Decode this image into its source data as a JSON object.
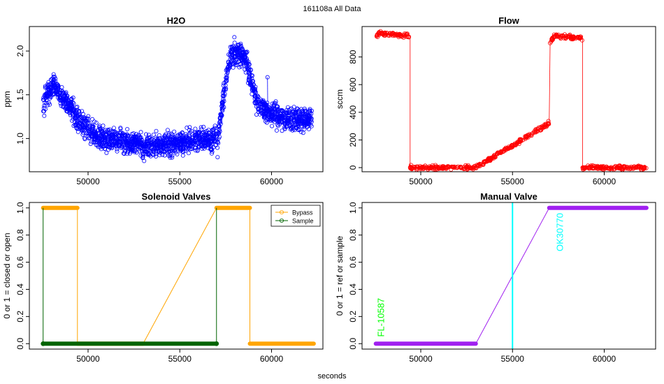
{
  "figure": {
    "title": "161108a   All Data",
    "xlabel": "seconds"
  },
  "chart_data": [
    {
      "id": "h2o",
      "type": "scatter",
      "title": "H2O",
      "ylabel": "ppm",
      "xlabel": "",
      "xlim": [
        46800,
        62800
      ],
      "ylim": [
        0.62,
        2.28
      ],
      "xticks": [
        50000,
        55000,
        60000
      ],
      "yticks": [
        1.0,
        1.5,
        2.0
      ],
      "ytick_labels": [
        "1.0",
        "1.5",
        "2.0"
      ],
      "connect": true,
      "color": "#0000ff",
      "segments": [
        {
          "x": [
            47550,
            47800,
            48000,
            48200,
            48400,
            48700,
            49000,
            49300,
            49600,
            49900,
            50200,
            50500,
            50800,
            51100,
            51400,
            51700,
            52000,
            52300,
            52600,
            52950
          ],
          "y": [
            1.35,
            1.5,
            1.58,
            1.63,
            1.52,
            1.45,
            1.37,
            1.27,
            1.18,
            1.12,
            1.08,
            1.03,
            1.0,
            0.98,
            0.98,
            0.97,
            0.96,
            0.95,
            0.95,
            0.92
          ]
        },
        {
          "x": [
            52950,
            57000
          ],
          "y": [
            0.9,
            1.0
          ]
        },
        {
          "x": [
            57050,
            57200,
            57400,
            57600,
            57800,
            58000,
            58200,
            58400,
            58600,
            58800,
            59000,
            59200,
            59500,
            59800,
            60100,
            60400,
            60700,
            61000,
            61300,
            61600,
            61900,
            62200
          ],
          "y": [
            0.92,
            1.2,
            1.5,
            1.8,
            1.95,
            2.0,
            1.98,
            1.95,
            1.88,
            1.75,
            1.58,
            1.42,
            1.33,
            1.3,
            1.28,
            1.25,
            1.23,
            1.22,
            1.22,
            1.22,
            1.22,
            1.23
          ]
        }
      ],
      "spread": 0.09
    },
    {
      "id": "flow",
      "type": "scatter",
      "title": "Flow",
      "ylabel": "sccm",
      "xlabel": "",
      "xlim": [
        46800,
        62800
      ],
      "ylim": [
        -30,
        1020
      ],
      "xticks": [
        50000,
        55000,
        60000
      ],
      "yticks": [
        0,
        200,
        400,
        600,
        800
      ],
      "ytick_labels": [
        "0",
        "200",
        "400",
        "600",
        "800"
      ],
      "connect": true,
      "color": "#ff0000",
      "segments": [
        {
          "x": [
            47550,
            47700,
            48000,
            48500,
            49000,
            49400
          ],
          "y": [
            935,
            975,
            968,
            962,
            957,
            955
          ]
        },
        {
          "x": [
            49420,
            49420
          ],
          "y": [
            955,
            0
          ]
        },
        {
          "x": [
            49420,
            50500,
            51500,
            52500,
            53000
          ],
          "y": [
            0,
            0,
            0,
            0,
            0
          ]
        },
        {
          "x": [
            53000,
            57000
          ],
          "y": [
            0,
            320
          ]
        },
        {
          "x": [
            57000,
            57050
          ],
          "y": [
            320,
            900
          ]
        },
        {
          "x": [
            57050,
            57300,
            57600,
            58000,
            58400,
            58800
          ],
          "y": [
            900,
            955,
            950,
            945,
            940,
            935
          ]
        },
        {
          "x": [
            58820,
            58820
          ],
          "y": [
            935,
            0
          ]
        },
        {
          "x": [
            58820,
            59800,
            60800,
            61800,
            62300
          ],
          "y": [
            0,
            0,
            0,
            0,
            0
          ]
        }
      ],
      "spread": 10
    },
    {
      "id": "solenoid",
      "type": "line",
      "title": "Solenoid Valves",
      "ylabel": "0 or 1 = closed or open",
      "xlabel": "",
      "xlim": [
        46800,
        62800
      ],
      "ylim": [
        -0.04,
        1.04
      ],
      "xticks": [
        50000,
        55000,
        60000
      ],
      "yticks": [
        0.0,
        0.2,
        0.4,
        0.6,
        0.8,
        1.0
      ],
      "ytick_labels": [
        "0.0",
        "0.2",
        "0.4",
        "0.6",
        "0.8",
        "1.0"
      ],
      "legend_position": "top-right",
      "series": [
        {
          "name": "Bypass",
          "color": "#ffa500",
          "x": [
            47550,
            49420,
            49420,
            53000,
            57000,
            58820,
            58820,
            62300
          ],
          "y": [
            1,
            1,
            0,
            0,
            1,
            1,
            0,
            0
          ]
        },
        {
          "name": "Sample",
          "color": "#006400",
          "x": [
            47550,
            47550,
            47550,
            57000,
            57000,
            57000
          ],
          "y": [
            0,
            1,
            0,
            0,
            1,
            0
          ]
        }
      ]
    },
    {
      "id": "manual",
      "type": "line",
      "title": "Manual Valve",
      "ylabel": "0 or 1 = ref or sample",
      "xlabel": "",
      "xlim": [
        46800,
        62800
      ],
      "ylim": [
        -0.04,
        1.04
      ],
      "xticks": [
        50000,
        55000,
        60000
      ],
      "yticks": [
        0.0,
        0.2,
        0.4,
        0.6,
        0.8,
        1.0
      ],
      "ytick_labels": [
        "0.0",
        "0.2",
        "0.4",
        "0.6",
        "0.8",
        "1.0"
      ],
      "series": [
        {
          "color": "#a020f0",
          "x": [
            47550,
            53000,
            57000,
            62300
          ],
          "y": [
            0,
            0,
            1,
            1
          ]
        }
      ],
      "vline": {
        "x": 55000,
        "color": "#00ffff"
      },
      "annotations": [
        {
          "text": "FL-10587",
          "x": 47850,
          "y": 0.05,
          "color": "#00ff00"
        },
        {
          "text": "OK30770",
          "x": 57600,
          "y": 0.68,
          "color": "#00ffff"
        }
      ]
    }
  ]
}
